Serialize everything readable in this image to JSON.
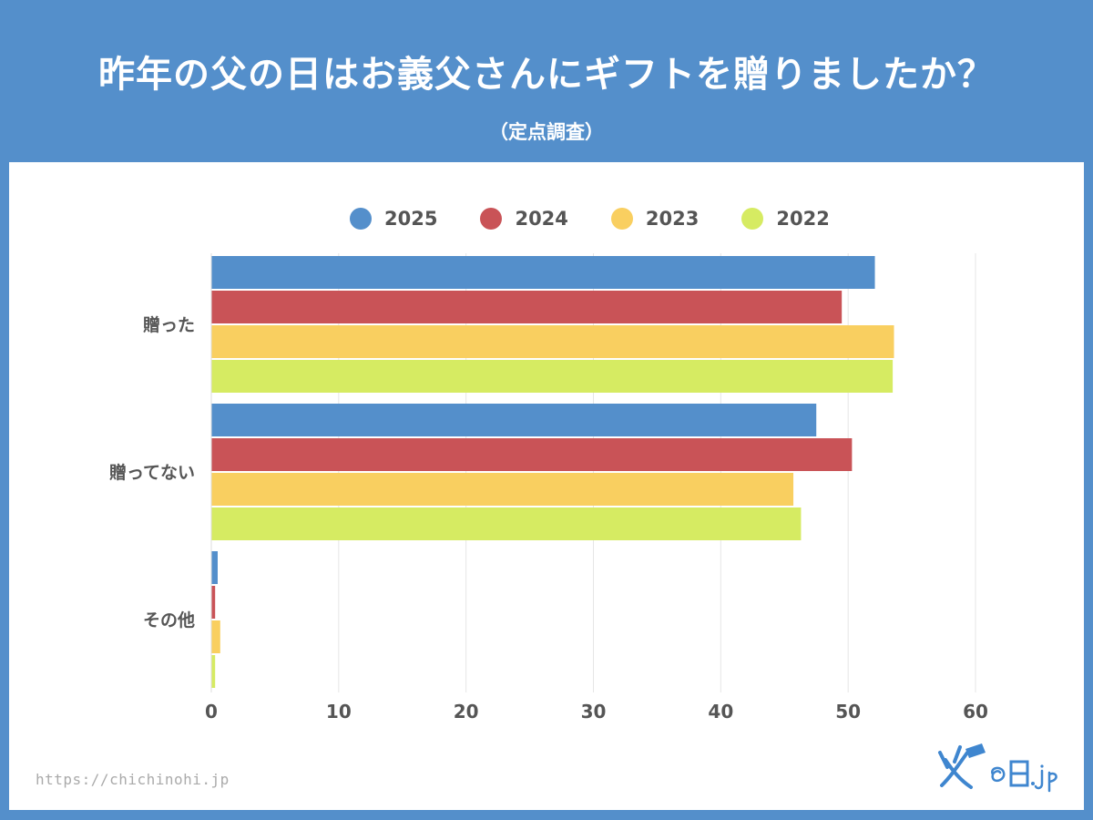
{
  "title": "昨年の父の日はお義父さんにギフトを贈りましたか？",
  "subtitle": "（定点調査）",
  "source_url": "https://chichinohi.jp",
  "logo_text": "父の日.jp",
  "colors": {
    "background": "#548fcb",
    "panel": "#ffffff",
    "grid": "#e6e6e6",
    "label": "#555555"
  },
  "chart_data": {
    "type": "bar",
    "orientation": "horizontal",
    "title": "昨年の父の日はお義父さんにギフトを贈りましたか？",
    "subtitle": "（定点調査）",
    "categories": [
      "贈った",
      "贈ってない",
      "その他"
    ],
    "series": [
      {
        "name": "2025",
        "color": "#548fcb",
        "values": [
          52.1,
          47.5,
          0.5
        ]
      },
      {
        "name": "2024",
        "color": "#c95357",
        "values": [
          49.5,
          50.3,
          0.3
        ]
      },
      {
        "name": "2023",
        "color": "#f9cf60",
        "values": [
          53.6,
          45.7,
          0.7
        ]
      },
      {
        "name": "2022",
        "color": "#d6eb62",
        "values": [
          53.5,
          46.3,
          0.3
        ]
      }
    ],
    "xlim": [
      0,
      60
    ],
    "xticks": [
      "0",
      "10",
      "20",
      "30",
      "40",
      "50",
      "60"
    ],
    "legend_position": "top",
    "grid": true
  }
}
